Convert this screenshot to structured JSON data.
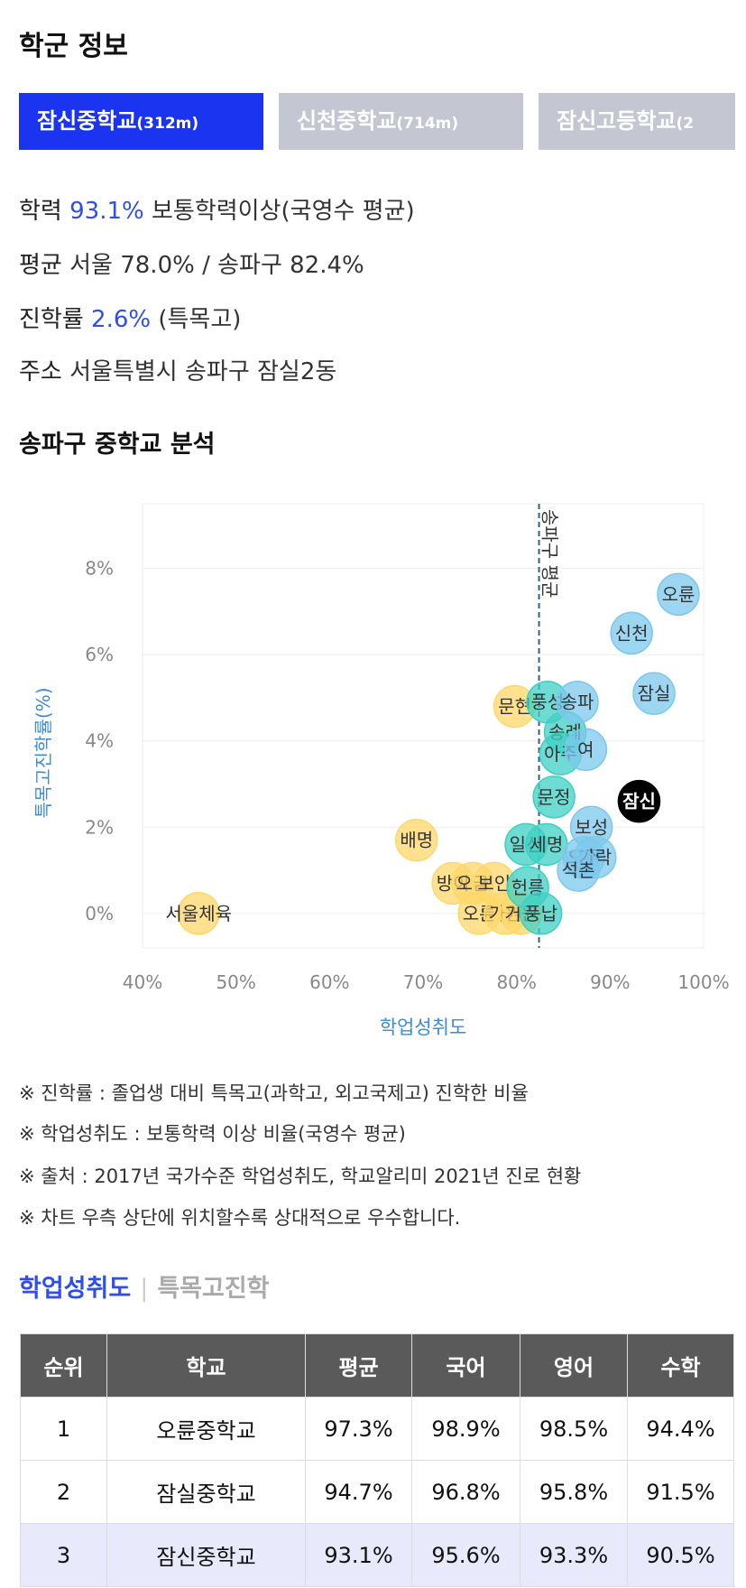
{
  "header": {
    "title": "학군 정보"
  },
  "tabs": [
    {
      "name": "잠신중학교",
      "dist": "(312m)"
    },
    {
      "name": "신천중학교",
      "dist": "(714m)"
    },
    {
      "name": "잠신고등학교",
      "dist": "(2"
    }
  ],
  "info": {
    "achievement_label": "학력",
    "achievement_value": "93.1%",
    "achievement_desc": "보통학력이상(국영수 평균)",
    "average_label": "평균",
    "average_value": "서울 78.0% / 송파구 82.4%",
    "admission_label": "진학률",
    "admission_value": "2.6%",
    "admission_desc": "(특목고)",
    "address_label": "주소",
    "address_value": "서울특별시 송파구 잠실2동"
  },
  "analysis": {
    "title": "송파구 중학교 분석"
  },
  "chart_data": {
    "type": "scatter",
    "xlabel": "학업성취도",
    "ylabel": "특목고진학률(%)",
    "xlim": [
      40,
      100
    ],
    "ylim": [
      -0.8,
      9.5
    ],
    "x_ticks": [
      "40%",
      "50%",
      "60%",
      "70%",
      "80%",
      "90%",
      "100%"
    ],
    "y_ticks": [
      "0%",
      "2%",
      "4%",
      "6%",
      "8%"
    ],
    "reference_line": {
      "x": 82.4,
      "label": "송파구 평균"
    },
    "colors": {
      "high": "#7cc8ec",
      "mid": "#3fd0c4",
      "low": "#ffd76a",
      "selected": "#000000"
    },
    "points": [
      {
        "label": "오륜",
        "x": 97.3,
        "y": 7.4,
        "group": "high"
      },
      {
        "label": "신천",
        "x": 92.3,
        "y": 6.5,
        "group": "high"
      },
      {
        "label": "잠실",
        "x": 94.7,
        "y": 5.1,
        "group": "high"
      },
      {
        "label": "송파",
        "x": 86.5,
        "y": 4.9,
        "group": "high"
      },
      {
        "label": "풍성",
        "x": 83.3,
        "y": 4.9,
        "group": "mid"
      },
      {
        "label": "문현",
        "x": 79.8,
        "y": 4.8,
        "group": "low"
      },
      {
        "label": "송례",
        "x": 85.2,
        "y": 4.2,
        "group": "mid"
      },
      {
        "label": "여",
        "x": 87.4,
        "y": 3.8,
        "group": "high"
      },
      {
        "label": "아주",
        "x": 84.7,
        "y": 3.7,
        "group": "mid"
      },
      {
        "label": "잠신",
        "x": 93.1,
        "y": 2.6,
        "group": "selected"
      },
      {
        "label": "문정",
        "x": 84.0,
        "y": 2.7,
        "group": "mid"
      },
      {
        "label": "보성",
        "x": 88.0,
        "y": 2.0,
        "group": "high"
      },
      {
        "label": "배명",
        "x": 69.3,
        "y": 1.7,
        "group": "low"
      },
      {
        "label": "일신",
        "x": 81.0,
        "y": 1.6,
        "group": "mid"
      },
      {
        "label": "세명",
        "x": 83.2,
        "y": 1.6,
        "group": "mid"
      },
      {
        "label": "오주",
        "x": 87.2,
        "y": 1.3,
        "group": "high"
      },
      {
        "label": "가락",
        "x": 88.4,
        "y": 1.3,
        "group": "high"
      },
      {
        "label": "석촌",
        "x": 86.6,
        "y": 1.0,
        "group": "high"
      },
      {
        "label": "방이",
        "x": 73.2,
        "y": 0.7,
        "group": "low"
      },
      {
        "label": "오금",
        "x": 75.3,
        "y": 0.7,
        "group": "low"
      },
      {
        "label": "보인",
        "x": 77.6,
        "y": 0.7,
        "group": "low"
      },
      {
        "label": "헌릉",
        "x": 81.2,
        "y": 0.6,
        "group": "mid"
      },
      {
        "label": "오륜",
        "x": 76.0,
        "y": 0.0,
        "group": "low"
      },
      {
        "label": "가원",
        "x": 78.8,
        "y": 0.0,
        "group": "low"
      },
      {
        "label": "거원",
        "x": 80.5,
        "y": 0.0,
        "group": "low"
      },
      {
        "label": "풍납",
        "x": 82.6,
        "y": 0.0,
        "group": "mid"
      },
      {
        "label": "서울체육",
        "x": 46.0,
        "y": 0.0,
        "group": "low"
      }
    ]
  },
  "notes": [
    "※ 진학률 : 졸업생 대비 특목고(과학고, 외고국제고) 진학한 비율",
    "※ 학업성취도 : 보통학력 이상 비율(국영수 평균)",
    "※ 출처 : 2017년 국가수준 학업성취도, 학교알리미 2021년 진로 현황",
    "※ 차트 우측 상단에 위치할수록 상대적으로 우수합니다."
  ],
  "sort_tabs": {
    "active": "학업성취도",
    "inactive": "특목고진학"
  },
  "table": {
    "headers": [
      "순위",
      "학교",
      "평균",
      "국어",
      "영어",
      "수학"
    ],
    "rows": [
      [
        "1",
        "오륜중학교",
        "97.3%",
        "98.9%",
        "98.5%",
        "94.4%"
      ],
      [
        "2",
        "잠실중학교",
        "94.7%",
        "96.8%",
        "95.8%",
        "91.5%"
      ],
      [
        "3",
        "잠신중학교",
        "93.1%",
        "95.6%",
        "93.3%",
        "90.5%"
      ]
    ]
  }
}
